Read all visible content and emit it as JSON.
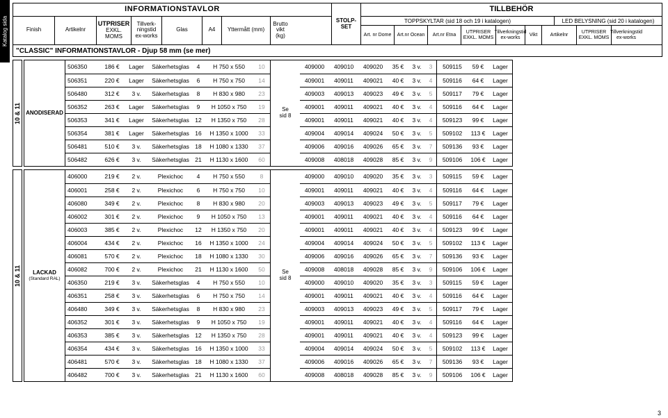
{
  "sideTab": "Katalog sida",
  "header": {
    "leftTitle": "INFORMATIONSTAVLOR",
    "cols": [
      "Finish",
      "Artikelnr",
      "UTPRISER EXKL. MOMS",
      "Tillverk-\nningstid\nex-works",
      "Glas",
      "A4",
      "Yttermått (mm)",
      "Brutto\nvikt\n(kg)"
    ],
    "stolp": "STOLP-\nSET",
    "rightTitle": "TILLBEHÖR",
    "toppTitle": "TOPPSKYLTAR (sid 18 och 19 i katalogen)",
    "ledTitle": "LED BELYSNING (sid 20 i katalogen)",
    "toppCols": [
      "Art. nr Dome",
      "Art.nr Ocean",
      "Art.nr Etna",
      "UTPRISER EXKL. MOMS",
      "Tillverkningstid\nex-works",
      "Vikt"
    ],
    "ledCols": [
      "Artikelnr",
      "UTPRISER EXKL. MOMS",
      "Tillverkningstid\nex-works"
    ]
  },
  "subtitle": "\"CLASSIC\" INFORMATIONSTAVLOR - Djup 58 mm (se mer)",
  "sideBlocks": [
    "10 & 11",
    "10 & 11"
  ],
  "groups": [
    {
      "finish": "ANODISERAD",
      "finishSub": "",
      "stolp": "Se sid 8",
      "rows": [
        {
          "l": [
            "506350",
            "186 €",
            "Lager",
            "Säkerhetsglas",
            "4",
            "H 750 x 550",
            "10"
          ],
          "t": [
            "409000",
            "409010",
            "409020",
            "35 €",
            "3 v.",
            "3"
          ],
          "d": [
            "509115",
            "59 €",
            "Lager"
          ]
        },
        {
          "l": [
            "506351",
            "220 €",
            "Lager",
            "Säkerhetsglas",
            "6",
            "H 750 x 750",
            "14"
          ],
          "t": [
            "409001",
            "409011",
            "409021",
            "40 €",
            "3 v.",
            "4"
          ],
          "d": [
            "509116",
            "64 €",
            "Lager"
          ]
        },
        {
          "l": [
            "506480",
            "312 €",
            "3 v.",
            "Säkerhetsglas",
            "8",
            "H 830 x 980",
            "23"
          ],
          "t": [
            "409003",
            "409013",
            "409023",
            "49 €",
            "3 v.",
            "5"
          ],
          "d": [
            "509117",
            "79 €",
            "Lager"
          ]
        },
        {
          "l": [
            "506352",
            "263 €",
            "Lager",
            "Säkerhetsglas",
            "9",
            "H 1050 x 750",
            "19"
          ],
          "t": [
            "409001",
            "409011",
            "409021",
            "40 €",
            "3 v.",
            "4"
          ],
          "d": [
            "509116",
            "64 €",
            "Lager"
          ]
        },
        {
          "l": [
            "506353",
            "341 €",
            "Lager",
            "Säkerhetsglas",
            "12",
            "H 1350 x 750",
            "28"
          ],
          "t": [
            "409001",
            "409011",
            "409021",
            "40 €",
            "3 v.",
            "4"
          ],
          "d": [
            "509123",
            "99 €",
            "Lager"
          ]
        },
        {
          "l": [
            "506354",
            "381 €",
            "Lager",
            "Säkerhetsglas",
            "16",
            "H 1350 x 1000",
            "33"
          ],
          "t": [
            "409004",
            "409014",
            "409024",
            "50 €",
            "3 v.",
            "5"
          ],
          "d": [
            "509102",
            "113 €",
            "Lager"
          ]
        },
        {
          "l": [
            "506481",
            "510 €",
            "3 v.",
            "Säkerhetsglas",
            "18",
            "H 1080 x 1330",
            "37"
          ],
          "t": [
            "409006",
            "409016",
            "409026",
            "65 €",
            "3 v.",
            "7"
          ],
          "d": [
            "509136",
            "93 €",
            "Lager"
          ]
        },
        {
          "l": [
            "506482",
            "626 €",
            "3 v.",
            "Säkerhetsglas",
            "21",
            "H 1130 x 1600",
            "60"
          ],
          "t": [
            "409008",
            "408018",
            "409028",
            "85 €",
            "3 v.",
            "9"
          ],
          "d": [
            "509106",
            "106 €",
            "Lager"
          ]
        }
      ]
    },
    {
      "finish": "LACKAD",
      "finishSub": "(Standard RAL)",
      "stolp": "Se sid 8",
      "rows": [
        {
          "l": [
            "406000",
            "219 €",
            "2 v.",
            "Plexichoc",
            "4",
            "H 750 x 550",
            "8"
          ],
          "t": [
            "409000",
            "409010",
            "409020",
            "35 €",
            "3 v.",
            "3"
          ],
          "d": [
            "509115",
            "59 €",
            "Lager"
          ]
        },
        {
          "l": [
            "406001",
            "258 €",
            "2 v.",
            "Plexichoc",
            "6",
            "H 750 x 750",
            "10"
          ],
          "t": [
            "409001",
            "409011",
            "409021",
            "40 €",
            "3 v.",
            "4"
          ],
          "d": [
            "509116",
            "64 €",
            "Lager"
          ]
        },
        {
          "l": [
            "406080",
            "349 €",
            "2 v.",
            "Plexichoc",
            "8",
            "H 830 x 980",
            "20"
          ],
          "t": [
            "409003",
            "409013",
            "409023",
            "49 €",
            "3 v.",
            "5"
          ],
          "d": [
            "509117",
            "79 €",
            "Lager"
          ]
        },
        {
          "l": [
            "406002",
            "301 €",
            "2 v.",
            "Plexichoc",
            "9",
            "H 1050 x 750",
            "13"
          ],
          "t": [
            "409001",
            "409011",
            "409021",
            "40 €",
            "3 v.",
            "4"
          ],
          "d": [
            "509116",
            "64 €",
            "Lager"
          ]
        },
        {
          "l": [
            "406003",
            "385 €",
            "2 v.",
            "Plexichoc",
            "12",
            "H 1350 x 750",
            "20"
          ],
          "t": [
            "409001",
            "409011",
            "409021",
            "40 €",
            "3 v.",
            "4"
          ],
          "d": [
            "509123",
            "99 €",
            "Lager"
          ]
        },
        {
          "l": [
            "406004",
            "434 €",
            "2 v.",
            "Plexichoc",
            "16",
            "H 1350 x 1000",
            "24"
          ],
          "t": [
            "409004",
            "409014",
            "409024",
            "50 €",
            "3 v.",
            "5"
          ],
          "d": [
            "509102",
            "113 €",
            "Lager"
          ]
        },
        {
          "l": [
            "406081",
            "570 €",
            "2 v.",
            "Plexichoc",
            "18",
            "H 1080 x 1330",
            "30"
          ],
          "t": [
            "409006",
            "409016",
            "409026",
            "65 €",
            "3 v.",
            "7"
          ],
          "d": [
            "509136",
            "93 €",
            "Lager"
          ]
        },
        {
          "l": [
            "406082",
            "700 €",
            "2 v.",
            "Plexichoc",
            "21",
            "H 1130 x 1600",
            "50"
          ],
          "t": [
            "409008",
            "408018",
            "409028",
            "85 €",
            "3 v.",
            "9"
          ],
          "d": [
            "509106",
            "106 €",
            "Lager"
          ]
        },
        {
          "l": [
            "406350",
            "219 €",
            "3 v.",
            "Säkerhetsglas",
            "4",
            "H 750 x 550",
            "10"
          ],
          "t": [
            "409000",
            "409010",
            "409020",
            "35 €",
            "3 v.",
            "3"
          ],
          "d": [
            "509115",
            "59 €",
            "Lager"
          ]
        },
        {
          "l": [
            "406351",
            "258 €",
            "3 v.",
            "Säkerhetsglas",
            "6",
            "H 750 x 750",
            "14"
          ],
          "t": [
            "409001",
            "409011",
            "409021",
            "40 €",
            "3 v.",
            "4"
          ],
          "d": [
            "509116",
            "64 €",
            "Lager"
          ]
        },
        {
          "l": [
            "406480",
            "349 €",
            "3 v.",
            "Säkerhetsglas",
            "8",
            "H 830 x 980",
            "23"
          ],
          "t": [
            "409003",
            "409013",
            "409023",
            "49 €",
            "3 v.",
            "5"
          ],
          "d": [
            "509117",
            "79 €",
            "Lager"
          ]
        },
        {
          "l": [
            "406352",
            "301 €",
            "3 v.",
            "Säkerhetsglas",
            "9",
            "H 1050 x 750",
            "19"
          ],
          "t": [
            "409001",
            "409011",
            "409021",
            "40 €",
            "3 v.",
            "4"
          ],
          "d": [
            "509116",
            "64 €",
            "Lager"
          ]
        },
        {
          "l": [
            "406353",
            "385 €",
            "3 v.",
            "Säkerhetsglas",
            "12",
            "H 1350 x 750",
            "28"
          ],
          "t": [
            "409001",
            "409011",
            "409021",
            "40 €",
            "3 v.",
            "4"
          ],
          "d": [
            "509123",
            "99 €",
            "Lager"
          ]
        },
        {
          "l": [
            "406354",
            "434 €",
            "3 v.",
            "Säkerhetsglas",
            "16",
            "H 1350 x 1000",
            "33"
          ],
          "t": [
            "409004",
            "409014",
            "409024",
            "50 €",
            "3 v.",
            "5"
          ],
          "d": [
            "509102",
            "113 €",
            "Lager"
          ]
        },
        {
          "l": [
            "406481",
            "570 €",
            "3 v.",
            "Säkerhetsglas",
            "18",
            "H 1080 x 1330",
            "37"
          ],
          "t": [
            "409006",
            "409016",
            "409026",
            "65 €",
            "3 v.",
            "7"
          ],
          "d": [
            "509136",
            "93 €",
            "Lager"
          ]
        },
        {
          "l": [
            "406482",
            "700 €",
            "3 v.",
            "Säkerhetsglas",
            "21",
            "H 1130 x 1600",
            "60"
          ],
          "t": [
            "409008",
            "408018",
            "409028",
            "85 €",
            "3 v.",
            "9"
          ],
          "d": [
            "509106",
            "106 €",
            "Lager"
          ]
        }
      ]
    }
  ],
  "greyLeftCols": [
    6
  ],
  "greyToppCols": [
    5
  ],
  "pageNum": "3"
}
